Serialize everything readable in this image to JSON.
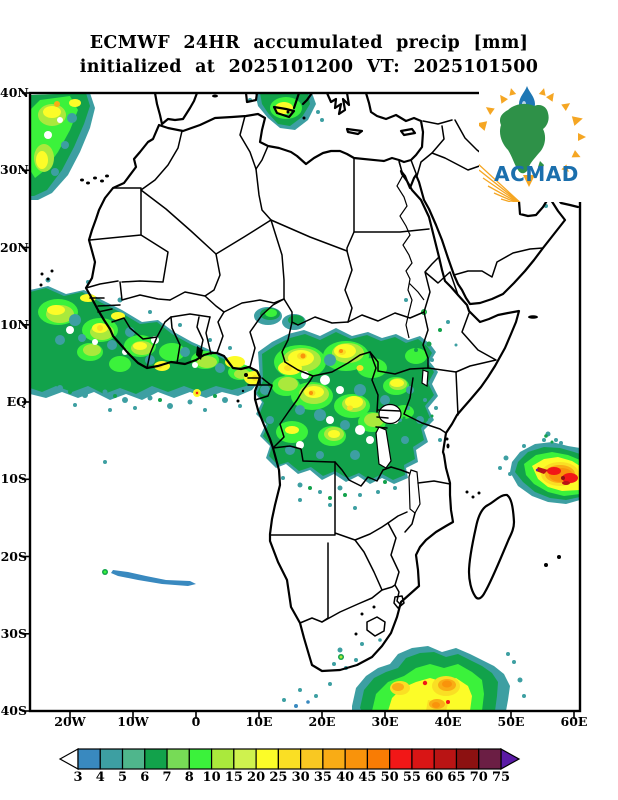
{
  "title": {
    "line1": "ECMWF 24HR accumulated precip [mm]",
    "line2": "initialized at 2025101200 VT: 2025101500"
  },
  "axes": {
    "lat_labels": [
      "40N",
      "30N",
      "20N",
      "10N",
      "EQ",
      "10S",
      "20S",
      "30S",
      "40S"
    ],
    "lon_labels": [
      "20W",
      "10W",
      "0",
      "10E",
      "20E",
      "30E",
      "40E",
      "50E",
      "60E"
    ]
  },
  "colorbar": {
    "labels": [
      "3",
      "4",
      "5",
      "6",
      "7",
      "8",
      "10",
      "15",
      "20",
      "25",
      "30",
      "35",
      "40",
      "45",
      "50",
      "55",
      "60",
      "65",
      "70",
      "75"
    ],
    "cell_colors": [
      "#3989BF",
      "#3D9FA2",
      "#4FB68C",
      "#12A24B",
      "#77DB56",
      "#3BF23B",
      "#AAE93C",
      "#CFF24E",
      "#FCFC28",
      "#FADF24",
      "#F9C822",
      "#F9AC15",
      "#F9930B",
      "#F97C04",
      "#F21717",
      "#D91515",
      "#B91414",
      "#8C1111",
      "#6B1E44"
    ],
    "under_range_color": "#FFFFFF",
    "over_range_color": "#5A1AA6"
  },
  "logo": {
    "text": "ACMAD",
    "text_color": "#1B6FAD",
    "africa_color": "#2E9148",
    "accent_color": "#F5A623",
    "drop_color": "#1E77B4"
  },
  "depicted_data": {
    "type": "filled-contour precipitation map",
    "units": "mm",
    "domain": {
      "lon": "approx 26W to 61E",
      "lat": "40S to 40N"
    },
    "regions": [
      {
        "area": "NE Atlantic off Morocco / Canary Islands",
        "intensity_mm": "3-35"
      },
      {
        "area": "Central Mediterranean near Sicily / southern Italy",
        "intensity_mm": "3-25"
      },
      {
        "area": "West African monsoon band along Guinea coast (4N-13N, 26W-15E)",
        "intensity_mm": "3-30"
      },
      {
        "area": "Congo Basin and Central Africa (8N-10S)",
        "intensity_mm": "3-40"
      },
      {
        "area": "Isolated convective cells over Ethiopian highlands",
        "intensity_mm": "3-10"
      },
      {
        "area": "Intense tropical system near 55E 8S, SW Indian Ocean",
        "intensity_mm": "up to >70"
      },
      {
        "area": "Weak streak near 21S 5W, South Atlantic",
        "intensity_mm": "3-6"
      },
      {
        "area": "Storm system near 38S 30-45E, south-east of South Africa",
        "intensity_mm": "up to 55"
      }
    ]
  }
}
